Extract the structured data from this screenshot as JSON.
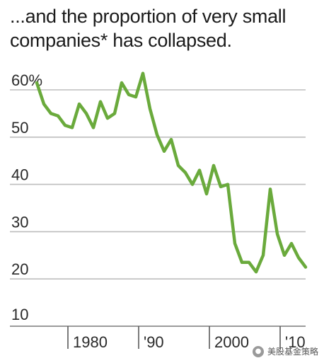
{
  "chart_data": {
    "type": "line",
    "title": "...and the proportion of very small companies* has collapsed.",
    "xlabel": "",
    "ylabel": "",
    "x_ticks": [
      "1980",
      "'90",
      "2000",
      "'10"
    ],
    "y_ticks": [
      "60%",
      "50",
      "40",
      "30",
      "20",
      "10"
    ],
    "ylim": [
      10,
      62
    ],
    "xlim": [
      1975,
      2013
    ],
    "grid": true,
    "series": [
      {
        "color": "#6aaa3c",
        "x": [
          1975,
          1976,
          1977,
          1978,
          1979,
          1980,
          1981,
          1982,
          1983,
          1984,
          1985,
          1986,
          1987,
          1988,
          1989,
          1990,
          1991,
          1992,
          1993,
          1994,
          1995,
          1996,
          1997,
          1998,
          1999,
          2000,
          2001,
          2002,
          2003,
          2004,
          2005,
          2006,
          2007,
          2008,
          2009,
          2010,
          2011,
          2012,
          2013
        ],
        "values": [
          61.5,
          57,
          55,
          54.5,
          52.5,
          52,
          57,
          55,
          52,
          57.5,
          54,
          55,
          61.5,
          59,
          58.5,
          63.5,
          56,
          50.5,
          47,
          49.5,
          44,
          42.5,
          40,
          43,
          38,
          44,
          39.5,
          40,
          27.5,
          23.5,
          23.5,
          21.5,
          25,
          39,
          29.5,
          25,
          27.5,
          24.5,
          22.5
        ]
      }
    ]
  },
  "watermark": {
    "text": "美股基金策略"
  }
}
